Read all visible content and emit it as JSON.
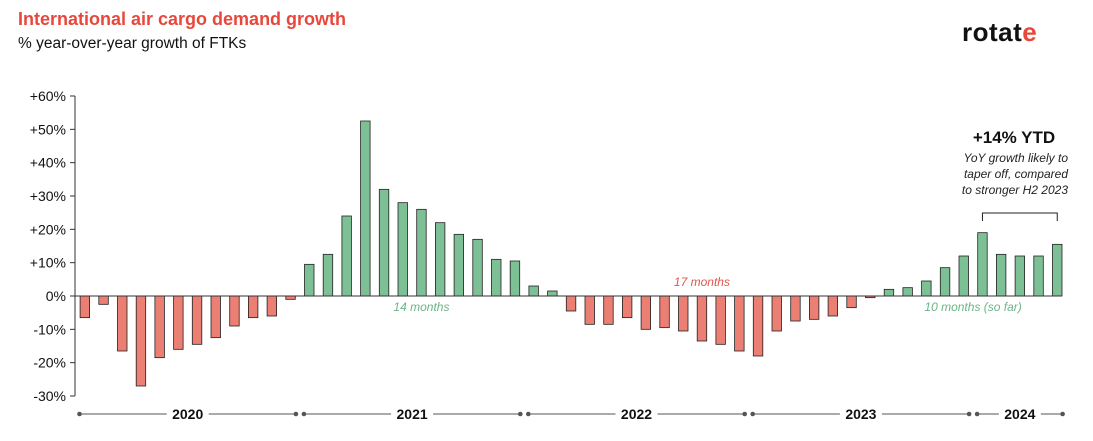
{
  "header": {
    "title": "International air cargo demand growth",
    "subtitle": "% year-over-year growth of FTKs",
    "logo_text": "rotat",
    "logo_accent": "e"
  },
  "colors": {
    "positive": "#7dc095",
    "negative": "#ec7f73",
    "title": "#e8483c",
    "positive_label": "#6db487",
    "negative_label": "#e0564b"
  },
  "chart_data": {
    "type": "bar",
    "title": "International air cargo demand growth",
    "subtitle": "% year-over-year growth of FTKs",
    "ylim": [
      -30,
      60
    ],
    "yticks": [
      -30,
      -20,
      -10,
      0,
      10,
      20,
      30,
      40,
      50,
      60
    ],
    "ytick_labels": [
      "-30%",
      "-20%",
      "-10%",
      "0%",
      "+10%",
      "+20%",
      "+30%",
      "+40%",
      "+50%",
      "+60%"
    ],
    "grid": false,
    "legend": "none",
    "values": [
      -6.5,
      -2.5,
      -16.5,
      -27,
      -18.5,
      -16,
      -14.5,
      -12.5,
      -9,
      -6.5,
      -6,
      -1,
      9.5,
      12.5,
      24,
      52.5,
      32,
      28,
      26,
      22,
      18.5,
      17,
      11,
      10.5,
      3,
      1.5,
      -4.5,
      -8.5,
      -8.5,
      -6.5,
      -10,
      -9.5,
      -10.5,
      -13.5,
      -14.5,
      -16.5,
      -18,
      -10.5,
      -7.5,
      -7,
      -6,
      -3.5,
      -0.5,
      2,
      2.5,
      4.5,
      8.5,
      12,
      19,
      12.5,
      12,
      12,
      15.5
    ],
    "years": [
      {
        "label": "2020",
        "count": 12
      },
      {
        "label": "2021",
        "count": 12
      },
      {
        "label": "2022",
        "count": 12
      },
      {
        "label": "2023",
        "count": 12
      },
      {
        "label": "2024",
        "count": 5
      }
    ],
    "annotations": {
      "span_14": "14 months",
      "span_17": "17 months",
      "span_10": "10 months (so far)",
      "ytd_headline": "+14% YTD",
      "ytd_note_lines": [
        "YoY growth likely to",
        "taper off, compared",
        "to stronger H2 2023"
      ]
    }
  }
}
